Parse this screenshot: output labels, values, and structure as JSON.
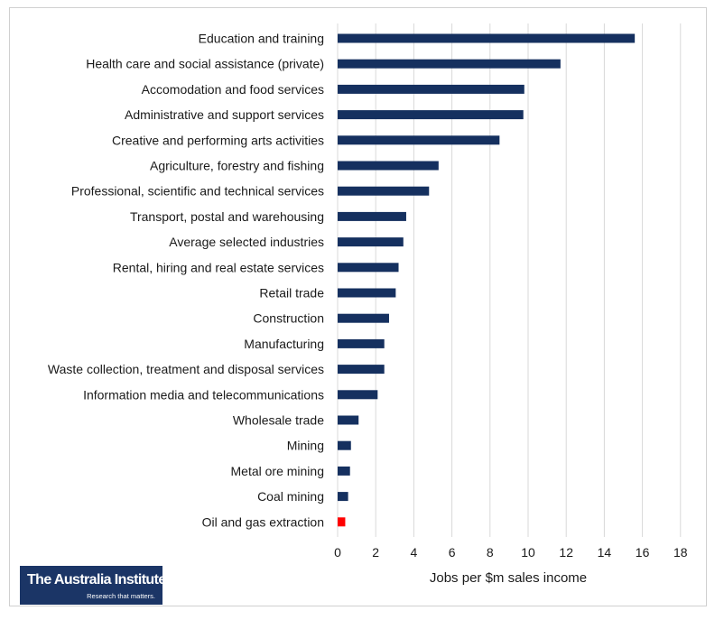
{
  "chart_data": {
    "type": "bar",
    "orientation": "horizontal",
    "categories": [
      "Education and training",
      "Health care and social assistance (private)",
      "Accomodation and food services",
      "Administrative and support services",
      "Creative and performing arts activities",
      "Agriculture, forestry and fishing",
      "Professional, scientific and technical services",
      "Transport, postal and warehousing",
      "Average selected industries",
      "Rental, hiring and real estate services",
      "Retail trade",
      "Construction",
      "Manufacturing",
      "Waste collection, treatment and disposal services",
      "Information media and telecommunications",
      "Wholesale trade",
      "Mining",
      "Metal ore mining",
      "Coal mining",
      "Oil and gas extraction"
    ],
    "values": [
      15.6,
      11.7,
      9.8,
      9.75,
      8.5,
      5.3,
      4.8,
      3.6,
      3.45,
      3.2,
      3.05,
      2.7,
      2.45,
      2.45,
      2.1,
      1.1,
      0.7,
      0.65,
      0.55,
      0.4
    ],
    "xlabel": "Jobs per $m sales income",
    "ylabel": "",
    "xlim": [
      0,
      18
    ],
    "xticks": [
      0,
      2,
      4,
      6,
      8,
      10,
      12,
      14,
      16,
      18
    ],
    "grid": "vertical",
    "legend": "none",
    "colors": {
      "bar": "#15305f",
      "highlight": "#ff0000",
      "highlight_category": "Oil and gas extraction",
      "grid": "#d9d9d9"
    }
  },
  "logo": {
    "name": "The Australia Institute",
    "tagline": "Research that matters."
  }
}
